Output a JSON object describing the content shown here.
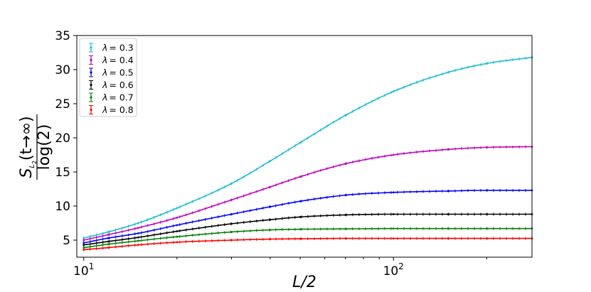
{
  "chart_data": {
    "type": "line",
    "xscale": "log",
    "xlim": [
      9.5,
      280
    ],
    "ylim": [
      2.5,
      35
    ],
    "x_ticks": [
      {
        "value": 10,
        "base": "10",
        "exp": "1"
      },
      {
        "value": 100,
        "base": "10",
        "exp": "2"
      }
    ],
    "y_ticks": [
      5,
      10,
      15,
      20,
      25,
      30,
      35
    ],
    "xlabel": "L/2",
    "ylabel": {
      "numerator": "S",
      "sub_outer": "L",
      "sub_inner": "2",
      "arg": "(t→∞)",
      "denominator": "log(2)"
    },
    "legend_position": "top-left",
    "grid": false,
    "x": [
      10,
      12,
      15,
      20,
      30,
      40,
      50,
      70,
      100,
      150,
      200,
      280
    ],
    "series": [
      {
        "name": "λ = 0.3",
        "lambda_label": "λ",
        "value_label": "= 0.3",
        "color": "#17becf",
        "values": [
          5.3,
          6.2,
          7.5,
          9.7,
          13.3,
          16.6,
          19.3,
          23.3,
          26.8,
          29.6,
          30.9,
          31.8
        ]
      },
      {
        "name": "λ = 0.4",
        "lambda_label": "λ",
        "value_label": "= 0.4",
        "color": "#bf00bf",
        "values": [
          5.0,
          5.8,
          6.8,
          8.3,
          10.9,
          12.8,
          14.3,
          16.2,
          17.5,
          18.3,
          18.6,
          18.7
        ]
      },
      {
        "name": "λ = 0.5",
        "lambda_label": "λ",
        "value_label": "= 0.5",
        "color": "#0000ff",
        "values": [
          4.6,
          5.3,
          6.0,
          7.2,
          8.8,
          9.9,
          10.7,
          11.6,
          12.0,
          12.2,
          12.3,
          12.3
        ]
      },
      {
        "name": "λ = 0.6",
        "lambda_label": "λ",
        "value_label": "= 0.6",
        "color": "#000000",
        "values": [
          4.3,
          4.8,
          5.4,
          6.3,
          7.4,
          8.0,
          8.4,
          8.7,
          8.8,
          8.8,
          8.8,
          8.8
        ]
      },
      {
        "name": "λ = 0.7",
        "lambda_label": "λ",
        "value_label": "= 0.7",
        "color": "#008000",
        "values": [
          3.9,
          4.4,
          4.9,
          5.5,
          6.2,
          6.5,
          6.6,
          6.65,
          6.7,
          6.7,
          6.7,
          6.7
        ]
      },
      {
        "name": "λ = 0.8",
        "lambda_label": "λ",
        "value_label": "= 0.8",
        "color": "#ff0000",
        "values": [
          3.6,
          3.9,
          4.3,
          4.7,
          5.0,
          5.15,
          5.2,
          5.25,
          5.25,
          5.25,
          5.25,
          5.25
        ]
      }
    ]
  }
}
